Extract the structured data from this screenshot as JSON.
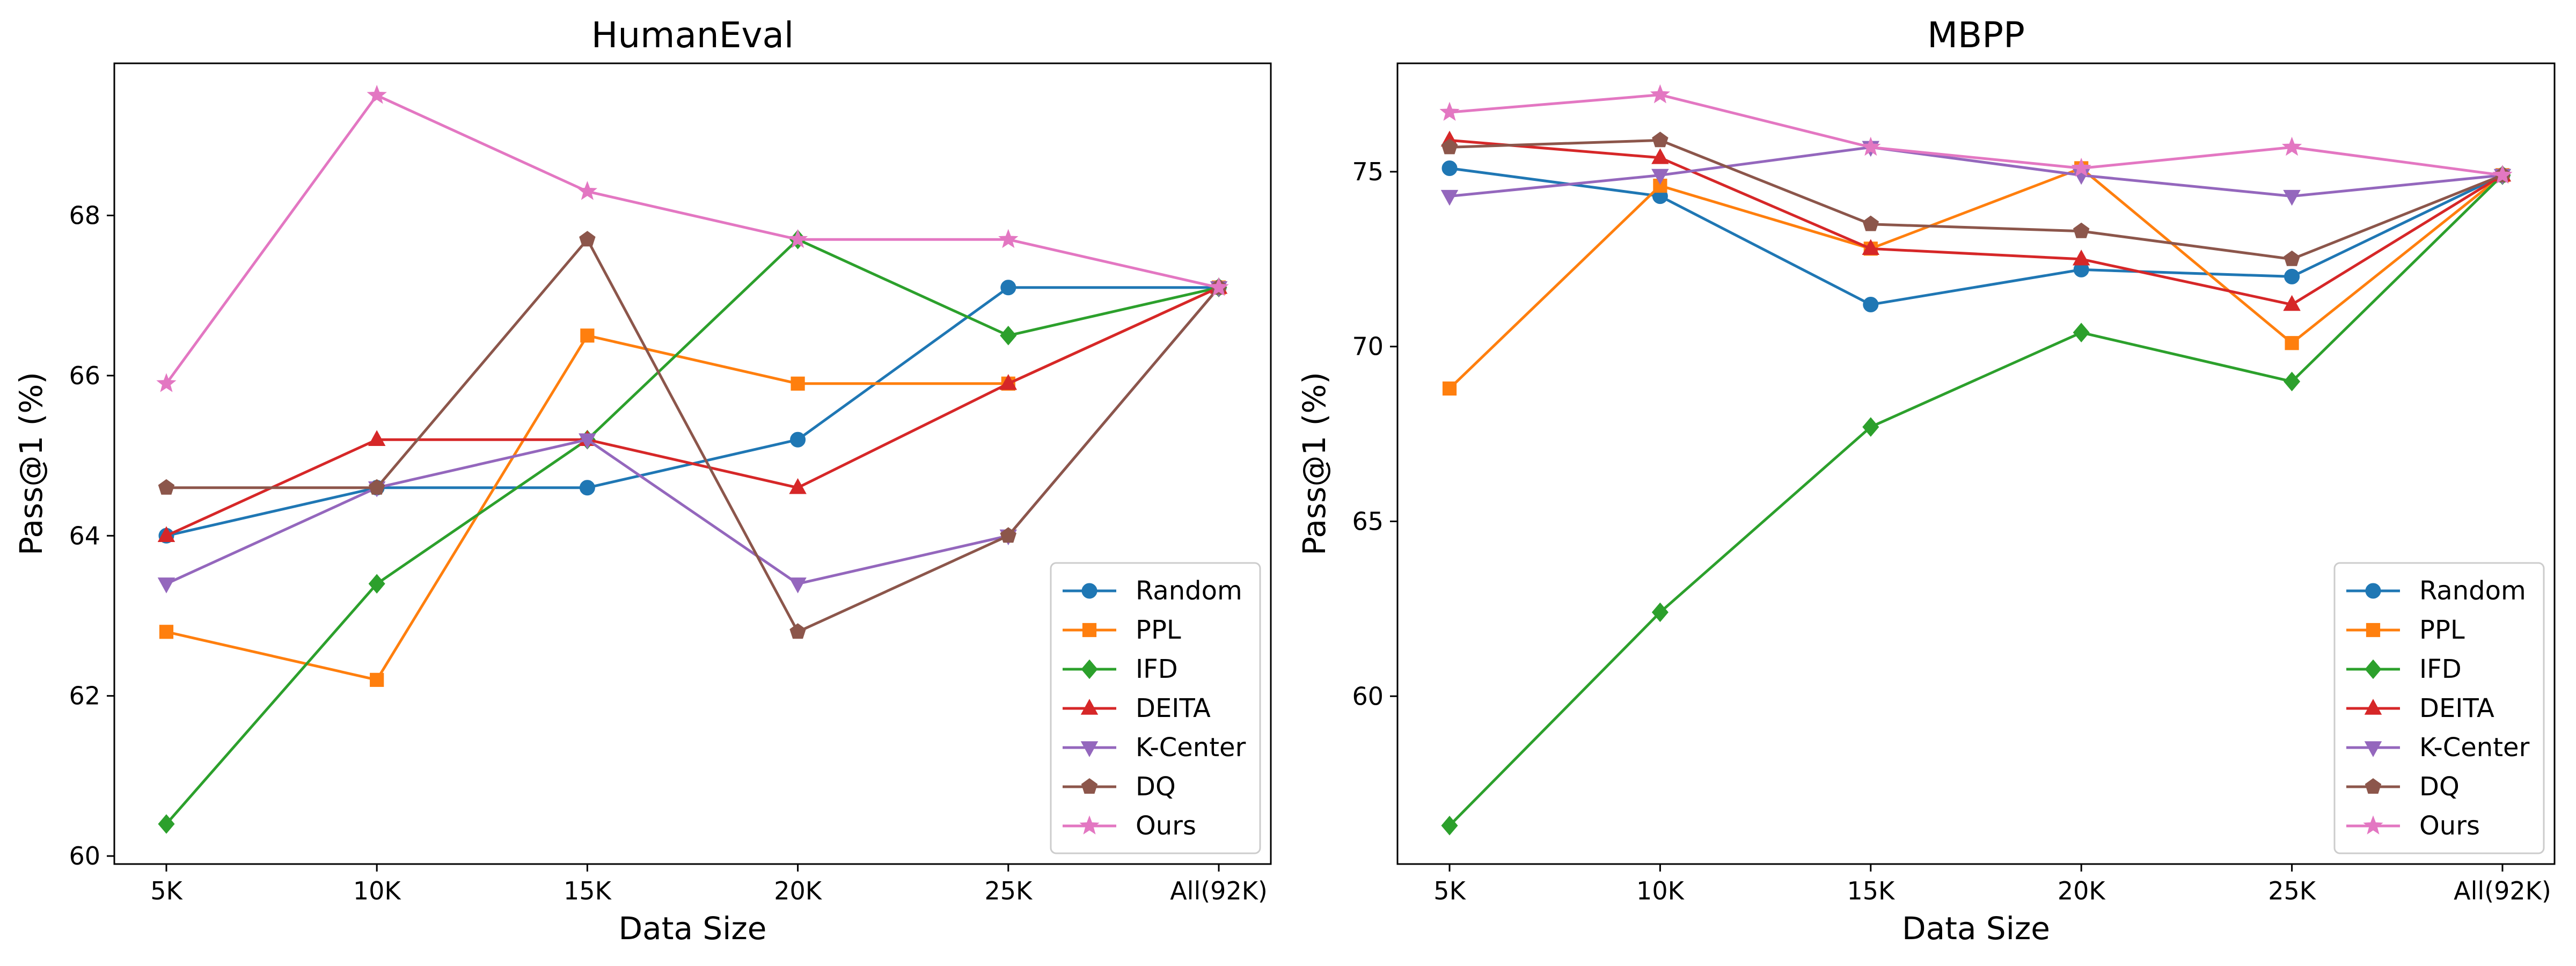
{
  "chart_data": [
    {
      "type": "line",
      "title": "HumanEval",
      "xlabel": "Data Size",
      "ylabel": "Pass@1 (%)",
      "categories": [
        "5K",
        "10K",
        "15K",
        "20K",
        "25K",
        "All(92K)"
      ],
      "ylim": [
        59.9,
        69.9
      ],
      "yticks": [
        60,
        62,
        64,
        66,
        68
      ],
      "legend_position": "lower-right",
      "grid": false,
      "series": [
        {
          "name": "Random",
          "color": "#1f77b4",
          "marker": "circle",
          "values": [
            64.0,
            64.6,
            64.6,
            65.2,
            67.1,
            67.1
          ]
        },
        {
          "name": "PPL",
          "color": "#ff7f0e",
          "marker": "square",
          "values": [
            62.8,
            62.2,
            66.5,
            65.9,
            65.9,
            67.1
          ]
        },
        {
          "name": "IFD",
          "color": "#2ca02c",
          "marker": "diamond",
          "values": [
            60.4,
            63.4,
            65.2,
            67.7,
            66.5,
            67.1
          ]
        },
        {
          "name": "DEITA",
          "color": "#d62728",
          "marker": "triangle-up",
          "values": [
            64.0,
            65.2,
            65.2,
            64.6,
            65.9,
            67.1
          ]
        },
        {
          "name": "K-Center",
          "color": "#9467bd",
          "marker": "triangle-down",
          "values": [
            63.4,
            64.6,
            65.2,
            63.4,
            64.0,
            67.1
          ]
        },
        {
          "name": "DQ",
          "color": "#8c564b",
          "marker": "pentagon",
          "values": [
            64.6,
            64.6,
            67.7,
            62.8,
            64.0,
            67.1
          ]
        },
        {
          "name": "Ours",
          "color": "#e377c2",
          "marker": "star",
          "values": [
            65.9,
            69.5,
            68.3,
            67.7,
            67.7,
            67.1
          ]
        }
      ]
    },
    {
      "type": "line",
      "title": "MBPP",
      "xlabel": "Data Size",
      "ylabel": "Pass@1 (%)",
      "categories": [
        "5K",
        "10K",
        "15K",
        "20K",
        "25K",
        "All(92K)"
      ],
      "ylim": [
        55.2,
        78.1
      ],
      "yticks": [
        60,
        65,
        70,
        75
      ],
      "legend_position": "lower-right",
      "grid": false,
      "series": [
        {
          "name": "Random",
          "color": "#1f77b4",
          "marker": "circle",
          "values": [
            75.1,
            74.3,
            71.2,
            72.2,
            72.0,
            74.9
          ]
        },
        {
          "name": "PPL",
          "color": "#ff7f0e",
          "marker": "square",
          "values": [
            68.8,
            74.6,
            72.8,
            75.1,
            70.1,
            74.9
          ]
        },
        {
          "name": "IFD",
          "color": "#2ca02c",
          "marker": "diamond",
          "values": [
            56.3,
            62.4,
            67.7,
            70.4,
            69.0,
            74.9
          ]
        },
        {
          "name": "DEITA",
          "color": "#d62728",
          "marker": "triangle-up",
          "values": [
            75.9,
            75.4,
            72.8,
            72.5,
            71.2,
            74.9
          ]
        },
        {
          "name": "K-Center",
          "color": "#9467bd",
          "marker": "triangle-down",
          "values": [
            74.3,
            74.9,
            75.7,
            74.9,
            74.3,
            74.9
          ]
        },
        {
          "name": "DQ",
          "color": "#8c564b",
          "marker": "pentagon",
          "values": [
            75.7,
            75.9,
            73.5,
            73.3,
            72.5,
            74.9
          ]
        },
        {
          "name": "Ours",
          "color": "#e377c2",
          "marker": "star",
          "values": [
            76.7,
            77.2,
            75.7,
            75.1,
            75.7,
            74.9
          ]
        }
      ]
    }
  ]
}
